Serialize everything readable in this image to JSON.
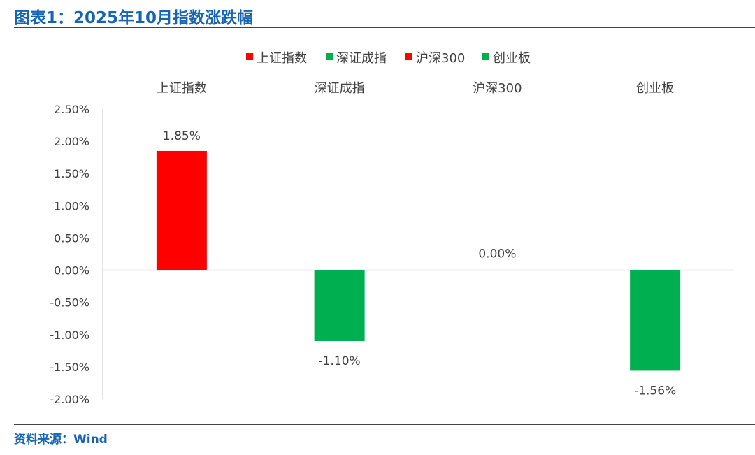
{
  "header": {
    "title": "图表1：2025年10月指数涨跌幅"
  },
  "footer": {
    "source": "资料来源：Wind"
  },
  "colors": {
    "title": "#1565b5",
    "rise": "#ff0000",
    "fall": "#00b050",
    "axis": "#d9d9d9"
  },
  "chart_data": {
    "type": "bar",
    "categories": [
      "上证指数",
      "深证成指",
      "沪深300",
      "创业板"
    ],
    "values": [
      1.85,
      -1.1,
      0.0,
      -1.56
    ],
    "data_labels": [
      "1.85%",
      "-1.10%",
      "0.00%",
      "-1.56%"
    ],
    "bar_colors": [
      "#ff0000",
      "#00b050",
      "#ff0000",
      "#00b050"
    ],
    "legend": [
      {
        "name": "上证指数",
        "color": "#ff0000"
      },
      {
        "name": "深证成指",
        "color": "#00b050"
      },
      {
        "name": "沪深300",
        "color": "#ff0000"
      },
      {
        "name": "创业板",
        "color": "#00b050"
      }
    ],
    "legend_position": "top",
    "category_labels_position": "top",
    "ylim": [
      -2.0,
      2.5
    ],
    "yticks": [
      2.5,
      2.0,
      1.5,
      1.0,
      0.5,
      0.0,
      -0.5,
      -1.0,
      -1.5,
      -2.0
    ],
    "ytick_labels": [
      "2.50%",
      "2.00%",
      "1.50%",
      "1.00%",
      "0.50%",
      "0.00%",
      "-0.50%",
      "-1.00%",
      "-1.50%",
      "-2.00%"
    ],
    "grid": false
  }
}
